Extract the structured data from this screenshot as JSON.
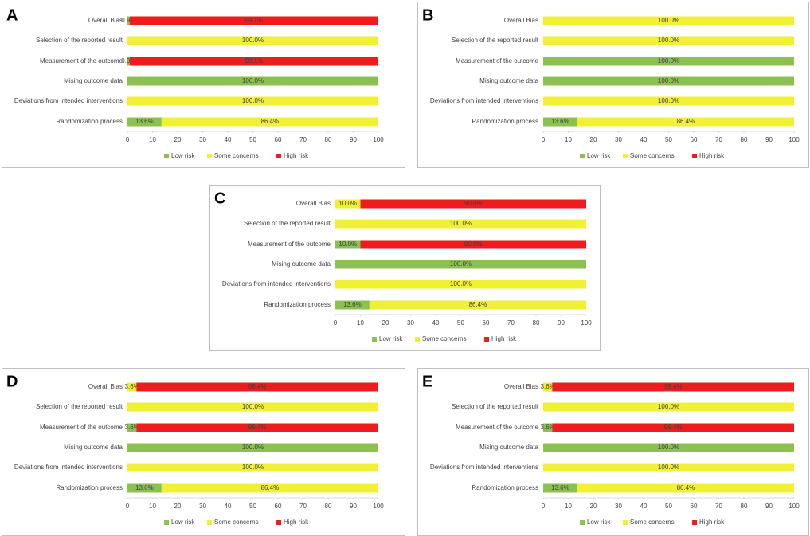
{
  "chart_data": [
    {
      "type": "stacked-barh",
      "label": "A",
      "categories": [
        "Overall Bias",
        "Selection of the reported result",
        "Measurement of the outcome",
        "Mising outcome data",
        "Deviations from intended interventions",
        "Randomization process"
      ],
      "series": [
        {
          "name": "Low risk",
          "color": "#8cc152",
          "values": [
            0.9,
            null,
            0.9,
            100,
            null,
            13.6
          ],
          "value_labels": [
            "0.9%",
            null,
            "0.9%",
            "100.0%",
            null,
            "13.6%"
          ]
        },
        {
          "name": "Some concerns",
          "color": "#f0f035",
          "values": [
            null,
            100,
            null,
            null,
            100,
            86.4
          ],
          "value_labels": [
            null,
            "100.0%",
            null,
            null,
            "100.0%",
            "86.4%"
          ]
        },
        {
          "name": "High risk",
          "color": "#ee1c1c",
          "values": [
            99.1,
            null,
            99.1,
            null,
            null,
            null
          ],
          "value_labels": [
            "99.1%",
            null,
            "99.1%",
            null,
            null,
            null
          ]
        }
      ],
      "xlim": [
        0,
        100
      ],
      "xticks": [
        0,
        10,
        20,
        30,
        40,
        50,
        60,
        70,
        80,
        90,
        100
      ],
      "legend": "bottom"
    },
    {
      "type": "stacked-barh",
      "label": "B",
      "categories": [
        "Overall Bias",
        "Selection of the reported result",
        "Measurement of the outcome",
        "Mising outcome data",
        "Deviations from intended interventions",
        "Randomization process"
      ],
      "series": [
        {
          "name": "Low risk",
          "color": "#8cc152",
          "values": [
            null,
            null,
            100,
            100,
            null,
            13.6
          ],
          "value_labels": [
            null,
            null,
            "100.0%",
            "100.0%",
            null,
            "13.6%"
          ]
        },
        {
          "name": "Some concerns",
          "color": "#f0f035",
          "values": [
            100,
            100,
            null,
            null,
            100,
            86.4
          ],
          "value_labels": [
            "100.0%",
            "100.0%",
            null,
            null,
            "100.0%",
            "86.4%"
          ]
        },
        {
          "name": "High risk",
          "color": "#ee1c1c",
          "values": [
            null,
            null,
            null,
            null,
            null,
            null
          ],
          "value_labels": [
            null,
            null,
            null,
            null,
            null,
            null
          ]
        }
      ],
      "xlim": [
        0,
        100
      ],
      "xticks": [
        0,
        10,
        20,
        30,
        40,
        50,
        60,
        70,
        80,
        90,
        100
      ],
      "legend": "bottom"
    },
    {
      "type": "stacked-barh",
      "label": "C",
      "categories": [
        "Overall Bias",
        "Selection of the reported result",
        "Measurement of the outcome",
        "Mising outcome data",
        "Deviations from intended interventions",
        "Randomization process"
      ],
      "series": [
        {
          "name": "Low risk",
          "color": "#8cc152",
          "values": [
            null,
            null,
            10.0,
            100,
            null,
            13.6
          ],
          "value_labels": [
            null,
            null,
            "10.0%",
            "100.0%",
            null,
            "13.6%"
          ]
        },
        {
          "name": "Some concerns",
          "color": "#f0f035",
          "values": [
            10.0,
            100,
            null,
            null,
            100,
            86.4
          ],
          "value_labels": [
            "10.0%",
            "100.0%",
            null,
            null,
            "100.0%",
            "86.4%"
          ]
        },
        {
          "name": "High risk",
          "color": "#ee1c1c",
          "values": [
            90.0,
            null,
            90.0,
            null,
            null,
            null
          ],
          "value_labels": [
            "90.0%",
            null,
            "90.0%",
            null,
            null,
            null
          ]
        }
      ],
      "xlim": [
        0,
        100
      ],
      "xticks": [
        0,
        10,
        20,
        30,
        40,
        50,
        60,
        70,
        80,
        90,
        100
      ],
      "legend": "bottom"
    },
    {
      "type": "stacked-barh",
      "label": "D",
      "categories": [
        "Overall Bias",
        "Selection of the reported result",
        "Measurement of the outcome",
        "Mising outcome data",
        "Deviations from intended interventions",
        "Randomization process"
      ],
      "series": [
        {
          "name": "Low risk",
          "color": "#8cc152",
          "values": [
            null,
            null,
            3.6,
            100,
            null,
            13.6
          ],
          "value_labels": [
            null,
            null,
            "3.6%",
            "100.0%",
            null,
            "13.6%"
          ]
        },
        {
          "name": "Some concerns",
          "color": "#f0f035",
          "values": [
            3.6,
            100,
            null,
            null,
            100,
            86.4
          ],
          "value_labels": [
            "3.6%",
            "100.0%",
            null,
            null,
            "100.0%",
            "86.4%"
          ]
        },
        {
          "name": "High risk",
          "color": "#ee1c1c",
          "values": [
            96.4,
            null,
            96.4,
            null,
            null,
            null
          ],
          "value_labels": [
            "96.4%",
            null,
            "96.4%",
            null,
            null,
            null
          ]
        }
      ],
      "xlim": [
        0,
        100
      ],
      "xticks": [
        0,
        10,
        20,
        30,
        40,
        50,
        60,
        70,
        80,
        90,
        100
      ],
      "legend": "bottom"
    },
    {
      "type": "stacked-barh",
      "label": "E",
      "categories": [
        "Overall Bias",
        "Selection of the reported result",
        "Measurement of the outcome",
        "Mising outcome data",
        "Deviations from intended interventions",
        "Randomization process"
      ],
      "series": [
        {
          "name": "Low risk",
          "color": "#8cc152",
          "values": [
            null,
            null,
            3.6,
            100,
            null,
            13.6
          ],
          "value_labels": [
            null,
            null,
            "3.6%",
            "100.0%",
            null,
            "13.6%"
          ]
        },
        {
          "name": "Some concerns",
          "color": "#f0f035",
          "values": [
            3.6,
            100,
            null,
            null,
            100,
            86.4
          ],
          "value_labels": [
            "3.6%",
            "100.0%",
            null,
            null,
            "100.0%",
            "86.4%"
          ]
        },
        {
          "name": "High risk",
          "color": "#ee1c1c",
          "values": [
            96.4,
            null,
            96.4,
            null,
            null,
            null
          ],
          "value_labels": [
            "96.4%",
            null,
            "96.4%",
            null,
            null,
            null
          ]
        }
      ],
      "xlim": [
        0,
        100
      ],
      "xticks": [
        0,
        10,
        20,
        30,
        40,
        50,
        60,
        70,
        80,
        90,
        100
      ],
      "legend": "bottom"
    }
  ]
}
